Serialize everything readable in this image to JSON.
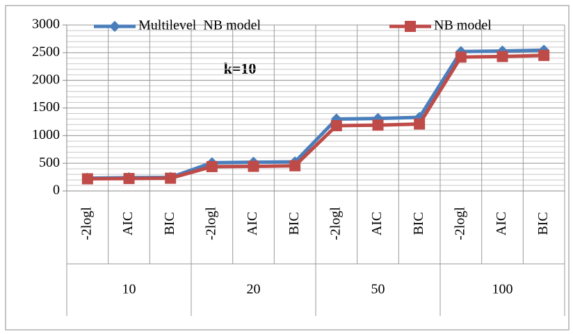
{
  "chart_data": {
    "type": "line",
    "annotation": "k=10",
    "categories": [
      "-2logl",
      "AIC",
      "BIC",
      "-2logl",
      "AIC",
      "BIC",
      "-2logl",
      "AIC",
      "BIC",
      "-2logl",
      "AIC",
      "BIC"
    ],
    "category_groups": [
      "10",
      "20",
      "50",
      "100"
    ],
    "series": [
      {
        "name": "Multilevel  NB model",
        "color": "#4a7ebb",
        "marker": "diamond",
        "values": [
          230,
          240,
          245,
          510,
          520,
          525,
          1300,
          1310,
          1330,
          2520,
          2530,
          2545
        ]
      },
      {
        "name": "NB model",
        "color": "#be4b48",
        "marker": "square",
        "values": [
          220,
          225,
          230,
          440,
          445,
          455,
          1180,
          1190,
          1210,
          2420,
          2430,
          2450
        ]
      }
    ],
    "ylim": [
      0,
      3000
    ],
    "yticks": [
      0,
      500,
      1000,
      1500,
      2000,
      2500,
      3000
    ],
    "grid": true,
    "grid_minor_step": 100,
    "legend": "top"
  }
}
